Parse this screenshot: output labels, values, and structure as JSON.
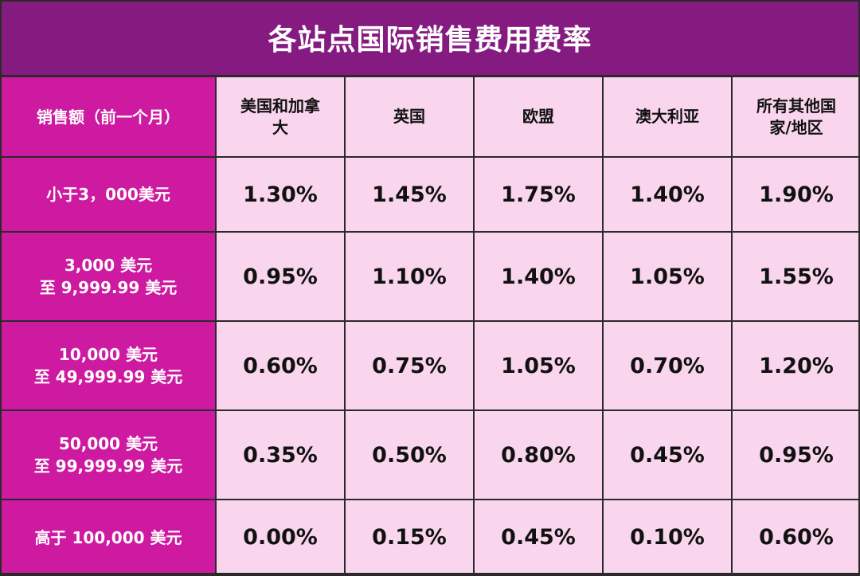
{
  "title": "各站点国际销售费用费率",
  "corner_label": "销售额（前一个月）",
  "columns": [
    {
      "lines": [
        "美国和加拿",
        "大"
      ]
    },
    {
      "lines": [
        "英国"
      ]
    },
    {
      "lines": [
        "欧盟"
      ]
    },
    {
      "lines": [
        "澳大利亚"
      ]
    },
    {
      "lines": [
        "所有其他国",
        "家/地区"
      ]
    }
  ],
  "rows": [
    {
      "label_lines": [
        "小于3，000美元"
      ],
      "values": [
        "1.30%",
        "1.45%",
        "1.75%",
        "1.40%",
        "1.90%"
      ]
    },
    {
      "label_lines": [
        "3,000 美元",
        "至 9,999.99 美元"
      ],
      "values": [
        "0.95%",
        "1.10%",
        "1.40%",
        "1.05%",
        "1.55%"
      ]
    },
    {
      "label_lines": [
        "10,000 美元",
        "至 49,999.99 美元"
      ],
      "values": [
        "0.60%",
        "0.75%",
        "1.05%",
        "0.70%",
        "1.20%"
      ]
    },
    {
      "label_lines": [
        "50,000 美元",
        "至 99,999.99 美元"
      ],
      "values": [
        "0.35%",
        "0.50%",
        "0.80%",
        "0.45%",
        "0.95%"
      ]
    },
    {
      "label_lines": [
        "高于 100,000 美元"
      ],
      "values": [
        "0.00%",
        "0.15%",
        "0.45%",
        "0.10%",
        "0.60%"
      ]
    }
  ],
  "colors": {
    "title_bg": "#851a80",
    "row_label_bg": "#cd1aa0",
    "cell_bg": "#f9d6ee",
    "border": "#2a2a2a"
  }
}
